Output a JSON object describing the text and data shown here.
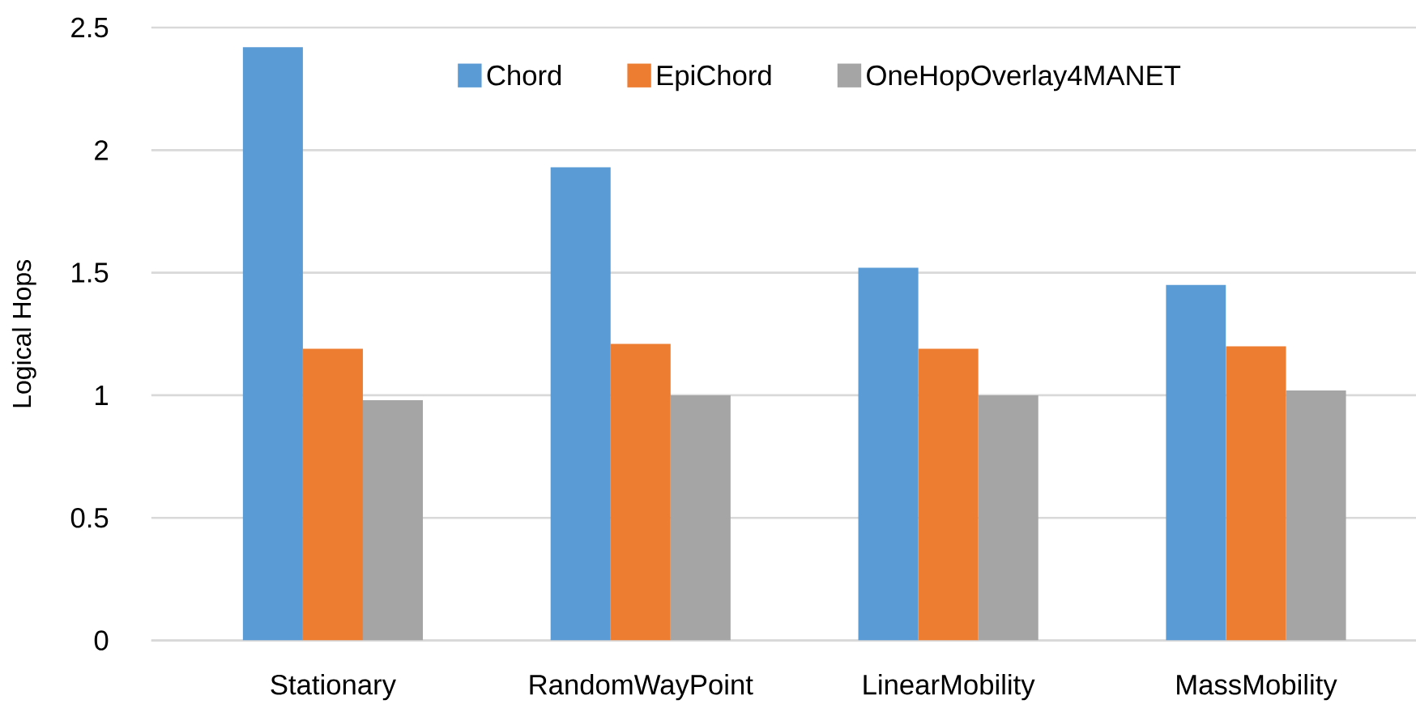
{
  "chart_data": {
    "type": "bar",
    "ylabel": "Logical Hops",
    "categories": [
      "Stationary",
      "RandomWayPoint",
      "LinearMobility",
      "MassMobility"
    ],
    "series": [
      {
        "name": "Chord",
        "color": "#5b9bd5",
        "values": [
          2.42,
          1.93,
          1.52,
          1.45
        ]
      },
      {
        "name": "EpiChord",
        "color": "#ed7d31",
        "values": [
          1.19,
          1.21,
          1.19,
          1.2
        ]
      },
      {
        "name": "OneHopOverlay4MANET",
        "color": "#a5a5a5",
        "values": [
          0.98,
          1.0,
          1.0,
          1.02
        ]
      }
    ],
    "ylim": [
      0,
      2.5
    ],
    "yticks": [
      0,
      0.5,
      1,
      1.5,
      2,
      2.5
    ],
    "grid": "y",
    "legend": "top"
  }
}
